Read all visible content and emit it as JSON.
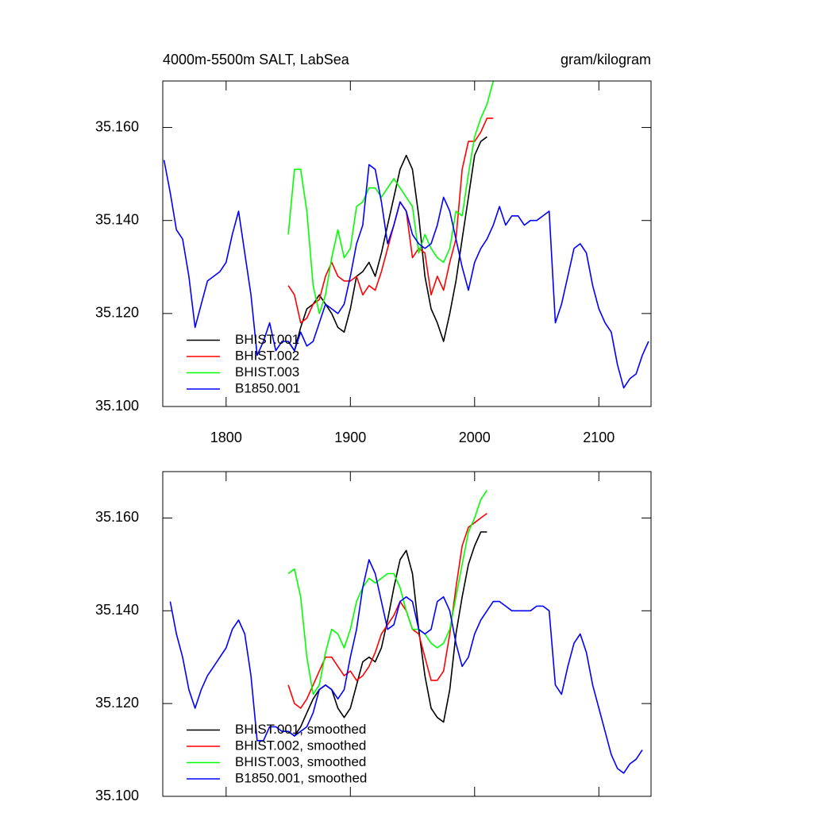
{
  "chart_data": [
    {
      "type": "line",
      "title": "4000m-5500m SALT, LabSea",
      "units_label": "gram/kilogram",
      "xlim": [
        1749,
        2142
      ],
      "xticks": [
        1800,
        1900,
        2000,
        2100
      ],
      "ylim": [
        35.1,
        35.17
      ],
      "yticks": [
        {
          "value": 35.1,
          "label": "35.100"
        },
        {
          "value": 35.12,
          "label": "35.120"
        },
        {
          "value": 35.14,
          "label": "35.140"
        },
        {
          "value": 35.16,
          "label": "35.160"
        }
      ],
      "legend": "lower-left",
      "x": [
        1750,
        1755,
        1760,
        1765,
        1770,
        1775,
        1780,
        1785,
        1790,
        1795,
        1800,
        1805,
        1810,
        1815,
        1820,
        1825,
        1830,
        1835,
        1840,
        1845,
        1850,
        1855,
        1860,
        1865,
        1870,
        1875,
        1880,
        1885,
        1890,
        1895,
        1900,
        1905,
        1910,
        1915,
        1920,
        1925,
        1930,
        1935,
        1940,
        1945,
        1950,
        1955,
        1960,
        1965,
        1970,
        1975,
        1980,
        1985,
        1990,
        1995,
        2000,
        2005,
        2010,
        2015,
        2020,
        2025,
        2030,
        2035,
        2040,
        2045,
        2050,
        2055,
        2060,
        2065,
        2070,
        2075,
        2080,
        2085,
        2090,
        2095,
        2100,
        2105,
        2110,
        2115,
        2120,
        2125,
        2130,
        2135,
        2140
      ],
      "series": [
        {
          "name": "BHIST.001",
          "color": "#000000",
          "values": [
            null,
            null,
            null,
            null,
            null,
            null,
            null,
            null,
            null,
            null,
            null,
            null,
            null,
            null,
            null,
            null,
            null,
            null,
            null,
            null,
            35.114,
            35.112,
            35.117,
            35.121,
            35.122,
            35.124,
            35.122,
            35.12,
            35.117,
            35.116,
            35.121,
            35.128,
            35.129,
            35.131,
            35.128,
            35.133,
            35.139,
            35.145,
            35.151,
            35.154,
            35.151,
            35.141,
            35.128,
            35.121,
            35.118,
            35.114,
            35.12,
            35.127,
            35.136,
            35.145,
            35.154,
            35.157,
            35.158,
            null,
            null,
            null,
            null,
            null,
            null,
            null,
            null,
            null,
            null,
            null,
            null,
            null,
            null,
            null,
            null,
            null,
            null,
            null,
            null,
            null,
            null,
            null,
            null,
            null,
            null
          ]
        },
        {
          "name": "BHIST.002",
          "color": "#ff0000",
          "values": [
            null,
            null,
            null,
            null,
            null,
            null,
            null,
            null,
            null,
            null,
            null,
            null,
            null,
            null,
            null,
            null,
            null,
            null,
            null,
            null,
            35.126,
            35.124,
            35.118,
            35.119,
            35.122,
            35.123,
            35.128,
            35.131,
            35.128,
            35.127,
            35.127,
            35.128,
            35.124,
            35.126,
            35.125,
            35.129,
            35.134,
            35.139,
            35.144,
            35.142,
            35.132,
            35.134,
            35.133,
            35.124,
            35.128,
            35.125,
            35.131,
            35.136,
            35.151,
            35.157,
            35.157,
            35.159,
            35.162,
            35.162,
            null,
            null,
            null,
            null,
            null,
            null,
            null,
            null,
            null,
            null,
            null,
            null,
            null,
            null,
            null,
            null,
            null,
            null,
            null,
            null,
            null,
            null,
            null,
            null,
            null
          ]
        },
        {
          "name": "BHIST.003",
          "color": "#00ff00",
          "values": [
            null,
            null,
            null,
            null,
            null,
            null,
            null,
            null,
            null,
            null,
            null,
            null,
            null,
            null,
            null,
            null,
            null,
            null,
            null,
            null,
            35.137,
            35.151,
            35.151,
            35.142,
            35.126,
            35.12,
            35.124,
            35.132,
            35.138,
            35.132,
            35.134,
            35.143,
            35.144,
            35.147,
            35.147,
            35.145,
            35.147,
            35.149,
            35.147,
            35.145,
            35.143,
            35.133,
            35.137,
            35.134,
            35.132,
            35.131,
            35.134,
            35.142,
            35.141,
            35.15,
            35.158,
            35.162,
            35.165,
            35.17,
            null,
            null,
            null,
            null,
            null,
            null,
            null,
            null,
            null,
            null,
            null,
            null,
            null,
            null,
            null,
            null,
            null,
            null,
            null,
            null,
            null,
            null,
            null,
            null,
            null
          ]
        },
        {
          "name": "B1850.001",
          "color": "#0000ff",
          "values": [
            35.153,
            35.146,
            35.138,
            35.136,
            35.128,
            35.117,
            35.122,
            35.127,
            35.128,
            35.129,
            35.131,
            35.137,
            35.142,
            35.133,
            35.124,
            35.111,
            35.114,
            35.118,
            35.112,
            35.114,
            35.114,
            35.112,
            35.116,
            35.113,
            35.114,
            35.118,
            35.122,
            35.121,
            35.12,
            35.122,
            35.128,
            35.135,
            35.139,
            35.152,
            35.151,
            35.144,
            35.135,
            35.139,
            35.144,
            35.142,
            35.137,
            35.135,
            35.134,
            35.135,
            35.139,
            35.145,
            35.142,
            35.136,
            35.13,
            35.125,
            35.131,
            35.134,
            35.136,
            35.139,
            35.143,
            35.139,
            35.141,
            35.141,
            35.139,
            35.14,
            35.14,
            35.141,
            35.142,
            35.118,
            35.122,
            35.128,
            35.134,
            35.135,
            35.133,
            35.126,
            35.121,
            35.118,
            35.116,
            35.109,
            35.104,
            35.106,
            35.107,
            35.111,
            35.114
          ]
        }
      ]
    },
    {
      "type": "line",
      "xlim": [
        1749,
        2142
      ],
      "xticks": [
        1800,
        1900,
        2000,
        2100
      ],
      "ylim": [
        35.1,
        35.17
      ],
      "yticks": [
        {
          "value": 35.1,
          "label": "35.100"
        },
        {
          "value": 35.12,
          "label": "35.120"
        },
        {
          "value": 35.14,
          "label": "35.140"
        },
        {
          "value": 35.16,
          "label": "35.160"
        }
      ],
      "legend": "lower-left",
      "x": [
        1750,
        1755,
        1760,
        1765,
        1770,
        1775,
        1780,
        1785,
        1790,
        1795,
        1800,
        1805,
        1810,
        1815,
        1820,
        1825,
        1830,
        1835,
        1840,
        1845,
        1850,
        1855,
        1860,
        1865,
        1870,
        1875,
        1880,
        1885,
        1890,
        1895,
        1900,
        1905,
        1910,
        1915,
        1920,
        1925,
        1930,
        1935,
        1940,
        1945,
        1950,
        1955,
        1960,
        1965,
        1970,
        1975,
        1980,
        1985,
        1990,
        1995,
        2000,
        2005,
        2010,
        2015,
        2020,
        2025,
        2030,
        2035,
        2040,
        2045,
        2050,
        2055,
        2060,
        2065,
        2070,
        2075,
        2080,
        2085,
        2090,
        2095,
        2100,
        2105,
        2110,
        2115,
        2120,
        2125,
        2130,
        2135,
        2140
      ],
      "series": [
        {
          "name": "BHIST.001, smoothed",
          "color": "#000000",
          "values": [
            null,
            null,
            null,
            null,
            null,
            null,
            null,
            null,
            null,
            null,
            null,
            null,
            null,
            null,
            null,
            null,
            null,
            null,
            null,
            null,
            35.114,
            35.113,
            35.115,
            35.118,
            35.121,
            35.123,
            35.124,
            35.123,
            35.119,
            35.117,
            35.119,
            35.124,
            35.129,
            35.13,
            35.129,
            35.132,
            35.138,
            35.145,
            35.151,
            35.153,
            35.148,
            35.136,
            35.126,
            35.119,
            35.117,
            35.116,
            35.123,
            35.135,
            35.143,
            35.15,
            35.154,
            35.157,
            35.157,
            null,
            null,
            null,
            null,
            null,
            null,
            null,
            null,
            null,
            null,
            null,
            null,
            null,
            null,
            null,
            null,
            null,
            null,
            null,
            null,
            null,
            null,
            null,
            null,
            null,
            null
          ]
        },
        {
          "name": "BHIST.002, smoothed",
          "color": "#ff0000",
          "values": [
            null,
            null,
            null,
            null,
            null,
            null,
            null,
            null,
            null,
            null,
            null,
            null,
            null,
            null,
            null,
            null,
            null,
            null,
            null,
            null,
            35.124,
            35.12,
            35.119,
            35.121,
            35.124,
            35.127,
            35.13,
            35.13,
            35.128,
            35.126,
            35.127,
            35.125,
            35.126,
            35.128,
            35.131,
            35.135,
            35.137,
            35.139,
            35.142,
            35.14,
            35.136,
            35.135,
            35.13,
            35.125,
            35.125,
            35.127,
            35.135,
            35.145,
            35.154,
            35.158,
            35.159,
            35.16,
            35.161,
            null,
            null,
            null,
            null,
            null,
            null,
            null,
            null,
            null,
            null,
            null,
            null,
            null,
            null,
            null,
            null,
            null,
            null,
            null,
            null,
            null,
            null,
            null,
            null,
            null,
            null
          ]
        },
        {
          "name": "BHIST.003, smoothed",
          "color": "#00ff00",
          "values": [
            null,
            null,
            null,
            null,
            null,
            null,
            null,
            null,
            null,
            null,
            null,
            null,
            null,
            null,
            null,
            null,
            null,
            null,
            null,
            null,
            35.148,
            35.149,
            35.143,
            35.13,
            35.122,
            35.124,
            35.131,
            35.136,
            35.135,
            35.132,
            35.136,
            35.142,
            35.145,
            35.147,
            35.146,
            35.147,
            35.148,
            35.148,
            35.145,
            35.14,
            35.136,
            35.136,
            35.135,
            35.133,
            35.132,
            35.133,
            35.136,
            35.143,
            35.15,
            35.157,
            35.16,
            35.164,
            35.166,
            null,
            null,
            null,
            null,
            null,
            null,
            null,
            null,
            null,
            null,
            null,
            null,
            null,
            null,
            null,
            null,
            null,
            null,
            null,
            null,
            null,
            null,
            null,
            null,
            null,
            null
          ]
        },
        {
          "name": "B1850.001, smoothed",
          "color": "#0000ff",
          "values": [
            null,
            35.142,
            35.135,
            35.13,
            35.123,
            35.119,
            35.123,
            35.126,
            35.128,
            35.13,
            35.132,
            35.136,
            35.138,
            35.135,
            35.126,
            35.112,
            35.112,
            35.115,
            35.115,
            35.114,
            35.114,
            35.113,
            35.114,
            35.115,
            35.118,
            35.123,
            35.124,
            35.123,
            35.121,
            35.123,
            35.13,
            35.136,
            35.145,
            35.151,
            35.148,
            35.142,
            35.136,
            35.137,
            35.142,
            35.143,
            35.142,
            35.136,
            35.135,
            35.136,
            35.142,
            35.143,
            35.14,
            35.133,
            35.128,
            35.13,
            35.135,
            35.138,
            35.14,
            35.142,
            35.142,
            35.141,
            35.14,
            35.14,
            35.14,
            35.14,
            35.141,
            35.141,
            35.14,
            35.124,
            35.122,
            35.128,
            35.133,
            35.135,
            35.131,
            35.124,
            35.119,
            35.114,
            35.109,
            35.106,
            35.105,
            35.107,
            35.108,
            35.11,
            null
          ]
        }
      ]
    }
  ]
}
